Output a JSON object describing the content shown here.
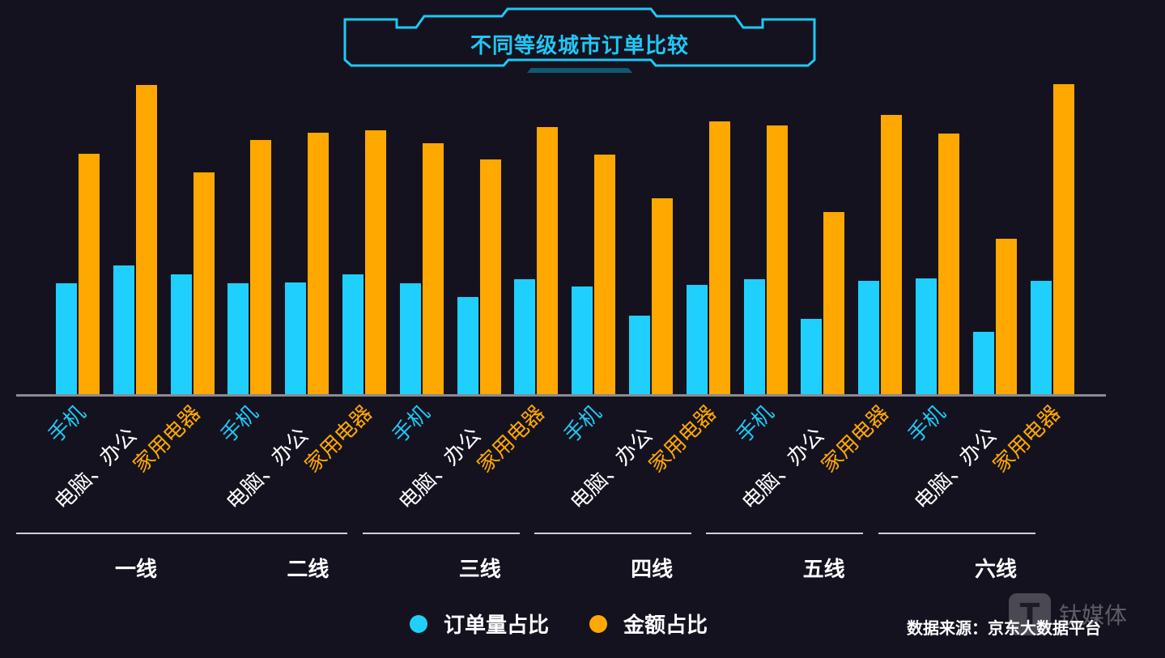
{
  "title": "不同等级城市订单比较",
  "colors": {
    "background": "#15121f",
    "order_share": "#1fd0ff",
    "amount_share": "#ffa800",
    "title": "#1fc8f5"
  },
  "legend": [
    {
      "label": "订单量占比",
      "color": "#1fd0ff"
    },
    {
      "label": "金额占比",
      "color": "#ffa800"
    }
  ],
  "source": "数据来源：京东大数据平台",
  "watermark": {
    "logo": "T",
    "text": "钛媒体"
  },
  "groups": [
    "一线",
    "二线",
    "三线",
    "四线",
    "五线",
    "六线"
  ],
  "subcategories": [
    "手机",
    "电脑、办公",
    "家用电器"
  ],
  "chart_data": {
    "type": "bar",
    "title": "不同等级城市订单比较",
    "xlabel": "",
    "ylabel": "",
    "grid": false,
    "y_axis_visible": false,
    "legend_position": "bottom",
    "note": "No y-axis shown; values are relative bar heights (tallest bar = 100).",
    "categories": [
      "一线-手机",
      "一线-电脑、办公",
      "一线-家用电器",
      "二线-手机",
      "二线-电脑、办公",
      "二线-家用电器",
      "三线-手机",
      "三线-电脑、办公",
      "三线-家用电器",
      "四线-手机",
      "四线-电脑、办公",
      "四线-家用电器",
      "五线-手机",
      "五线-电脑、办公",
      "五线-家用电器",
      "六线-手机",
      "六线-电脑、办公",
      "六线-家用电器"
    ],
    "series": [
      {
        "name": "订单量占比",
        "color": "#1fd0ff",
        "values": [
          36.0,
          41.7,
          38.8,
          36.0,
          36.2,
          38.8,
          36.0,
          31.5,
          37.2,
          34.9,
          25.5,
          35.4,
          37.2,
          24.5,
          36.7,
          37.5,
          20.3,
          36.7
        ]
      },
      {
        "name": "金额占比",
        "color": "#ffa800",
        "values": [
          77.6,
          99.7,
          71.6,
          82.0,
          84.4,
          85.2,
          81.0,
          75.8,
          86.2,
          77.3,
          63.3,
          88.0,
          86.7,
          58.9,
          90.1,
          84.1,
          50.3,
          100.0
        ]
      }
    ],
    "ylim": [
      0,
      100
    ]
  }
}
